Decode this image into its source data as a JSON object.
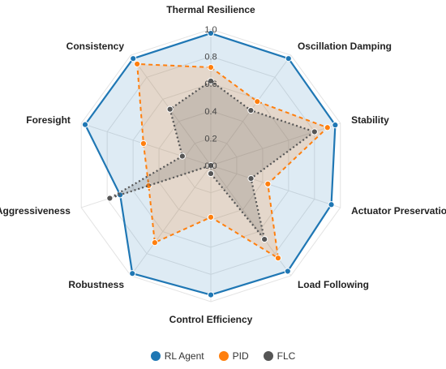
{
  "chart_data": {
    "type": "radar",
    "axes": [
      "Thermal Resilience",
      "Oscillation Damping",
      "Stability",
      "Actuator Preservation",
      "Load Following",
      "Control Efficiency",
      "Robustness",
      "Aggressiveness",
      "Foresight",
      "Consistency"
    ],
    "range": [
      0,
      1
    ],
    "ticks": [
      "0.0",
      "0.2",
      "0.4",
      "0.6",
      "0.8",
      "1.0"
    ],
    "grid": true,
    "legend_position": "bottom",
    "series": [
      {
        "name": "RL Agent",
        "color": "#1f77b4",
        "values": [
          0.97,
          0.97,
          0.96,
          0.93,
          0.96,
          0.95,
          0.98,
          0.7,
          0.97,
          0.97
        ]
      },
      {
        "name": "PID",
        "color": "#ff7f0e",
        "values": [
          0.72,
          0.58,
          0.9,
          0.44,
          0.84,
          0.38,
          0.7,
          0.48,
          0.52,
          0.92
        ]
      },
      {
        "name": "FLC",
        "color": "#555555",
        "values": [
          0.62,
          0.5,
          0.8,
          0.31,
          0.67,
          0.06,
          0.0,
          0.78,
          0.22,
          0.51
        ]
      }
    ]
  }
}
